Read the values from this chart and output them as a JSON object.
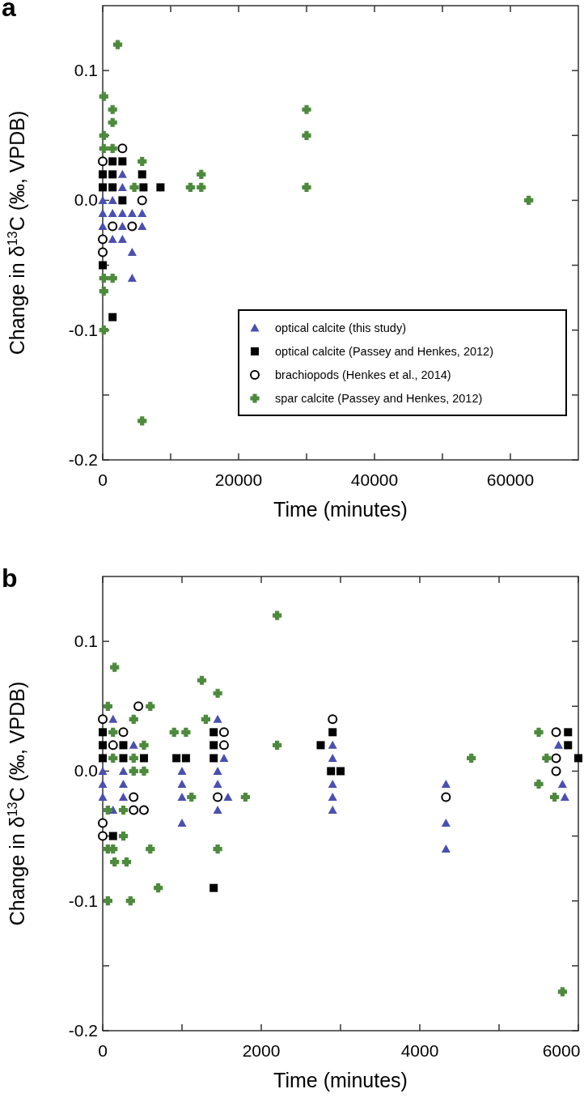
{
  "chart_data": [
    {
      "type": "scatter",
      "title": "a",
      "xlabel": "Time (minutes)",
      "ylabel": "Change in δ$^{13}$C (‰, VPDB)",
      "xlim": [
        0,
        70000
      ],
      "ylim": [
        -0.2,
        0.15
      ],
      "xticks": [
        0,
        {
          "value": 10000,
          "label": null
        },
        20000,
        {
          "value": 30000,
          "label": null
        },
        40000,
        {
          "value": 50000,
          "label": null
        },
        60000
      ],
      "yticks": [
        {
          "value": -0.2,
          "label": "-0.2"
        },
        {
          "value": -0.15,
          "label": null
        },
        {
          "value": -0.1,
          "label": "-0.1"
        },
        {
          "value": -0.05,
          "label": null
        },
        {
          "value": 0,
          "label": "0.0"
        },
        {
          "value": 0.05,
          "label": null
        },
        {
          "value": 0.1,
          "label": "0.1"
        }
      ],
      "legend": "bottom right",
      "grid": false,
      "series": [
        {
          "name": "optical calcite (this study)",
          "color": "#4a4fb0",
          "marker": "triangle",
          "x": [
            0,
            0,
            0,
            1450,
            1450,
            1450,
            2900,
            2900,
            2900,
            2900,
            2900,
            4330,
            4330,
            4330,
            5800,
            5800
          ],
          "values": [
            0.0,
            -0.01,
            -0.02,
            0.0,
            -0.01,
            -0.03,
            0.02,
            0.01,
            -0.01,
            -0.02,
            -0.03,
            -0.01,
            -0.04,
            -0.06,
            -0.01,
            -0.02
          ]
        },
        {
          "name": "optical calcite (Passey and Henkes, 2012)",
          "color": "#000000",
          "marker": "square",
          "x": [
            0,
            0,
            0,
            1450,
            1450,
            1450,
            1450,
            2900,
            2900,
            5800,
            6000,
            8500
          ],
          "values": [
            0.02,
            0.01,
            -0.05,
            0.03,
            0.02,
            0.01,
            -0.09,
            0.03,
            0.0,
            0.02,
            0.01,
            0.01
          ]
        },
        {
          "name": "brachiopods (Henkes et al., 2014)",
          "color": "#000000",
          "marker": "circle",
          "x": [
            0,
            0,
            0,
            1450,
            2900,
            4330,
            5800
          ],
          "values": [
            0.03,
            -0.03,
            -0.04,
            -0.02,
            0.04,
            -0.02,
            0.0
          ]
        },
        {
          "name": "spar calcite (Passey and Henkes, 2012)",
          "color": "#4d8a3d",
          "marker": "cross",
          "x": [
            150,
            150,
            150,
            150,
            150,
            150,
            1450,
            1450,
            1450,
            1450,
            2200,
            4650,
            5800,
            5800,
            12900,
            14500,
            14500,
            30000,
            30000,
            30000,
            62700
          ],
          "values": [
            0.08,
            0.05,
            0.04,
            -0.06,
            -0.07,
            -0.1,
            0.07,
            0.06,
            0.04,
            -0.06,
            0.12,
            0.01,
            0.03,
            -0.17,
            0.01,
            0.01,
            0.02,
            0.07,
            0.05,
            0.01,
            0.0
          ]
        }
      ]
    },
    {
      "type": "scatter",
      "title": "b",
      "xlabel": "Time (minutes)",
      "ylabel": "Change in δ$^{13}$C (‰, VPDB)",
      "xlim": [
        0,
        6000
      ],
      "ylim": [
        -0.2,
        0.15
      ],
      "xticks": [
        0,
        {
          "value": 1000,
          "label": null
        },
        2000,
        {
          "value": 3000,
          "label": null
        },
        4000,
        {
          "value": 5000,
          "label": null
        },
        6000
      ],
      "yticks": [
        {
          "value": -0.2,
          "label": "-0.2"
        },
        {
          "value": -0.15,
          "label": null
        },
        {
          "value": -0.1,
          "label": "-0.1"
        },
        {
          "value": -0.05,
          "label": null
        },
        {
          "value": 0,
          "label": "0.0"
        },
        {
          "value": 0.05,
          "label": null
        },
        {
          "value": 0.1,
          "label": "0.1"
        }
      ],
      "grid": false,
      "series": [
        {
          "color": "#4a4fb0",
          "marker": "triangle",
          "x": [
            0,
            260,
            0,
            260,
            0,
            260,
            130,
            130,
            390,
            1000,
            1000,
            1000,
            1000,
            1450,
            1530,
            1450,
            1450,
            1580,
            1450,
            2900,
            2900,
            2900,
            2900,
            2900,
            4330,
            4330,
            4330,
            5750,
            5800,
            5830
          ],
          "values": [
            0.0,
            0.0,
            -0.01,
            -0.01,
            -0.02,
            -0.02,
            -0.03,
            0.04,
            0.02,
            0.0,
            -0.01,
            -0.02,
            -0.04,
            0.04,
            0.01,
            0.0,
            -0.01,
            -0.02,
            -0.03,
            0.02,
            0.01,
            -0.01,
            -0.02,
            -0.03,
            -0.01,
            -0.04,
            -0.06,
            0.02,
            -0.01,
            -0.02
          ]
        },
        {
          "color": "#000000",
          "marker": "square",
          "x": [
            0,
            0,
            0,
            260,
            260,
            520,
            130,
            930,
            1050,
            1400,
            1400,
            1400,
            1400,
            2750,
            2900,
            2880,
            3000,
            5870,
            5870,
            6000
          ],
          "values": [
            0.03,
            0.02,
            0.01,
            0.02,
            0.01,
            0.01,
            -0.05,
            0.01,
            0.01,
            0.03,
            0.02,
            0.01,
            -0.09,
            0.02,
            0.03,
            0.0,
            0.0,
            0.03,
            0.02,
            0.01
          ]
        },
        {
          "color": "#000000",
          "marker": "circle",
          "x": [
            0,
            260,
            130,
            450,
            390,
            390,
            520,
            0,
            0,
            1450,
            1530,
            1530,
            2900,
            4330,
            5720,
            5720,
            5720
          ],
          "values": [
            0.04,
            0.03,
            0.02,
            0.05,
            -0.02,
            -0.03,
            -0.03,
            -0.04,
            -0.05,
            -0.02,
            0.02,
            0.03,
            0.04,
            -0.02,
            0.03,
            0.01,
            0.0
          ]
        },
        {
          "color": "#4d8a3d",
          "marker": "cross",
          "x": [
            150,
            65,
            600,
            390,
            130,
            520,
            130,
            390,
            390,
            520,
            65,
            260,
            260,
            65,
            130,
            600,
            150,
            300,
            700,
            65,
            350,
            900,
            1050,
            1120,
            1250,
            1300,
            1450,
            1450,
            1800,
            2200,
            2200,
            4650,
            5500,
            5500,
            5600,
            5700,
            5800
          ],
          "values": [
            0.08,
            0.05,
            0.05,
            0.04,
            0.03,
            0.02,
            0.01,
            0.01,
            0.0,
            0.0,
            -0.03,
            -0.03,
            -0.05,
            -0.06,
            -0.06,
            -0.06,
            -0.07,
            -0.07,
            -0.09,
            -0.1,
            -0.1,
            0.03,
            0.03,
            -0.02,
            0.07,
            0.04,
            0.06,
            -0.06,
            -0.02,
            0.12,
            0.02,
            0.01,
            0.03,
            -0.01,
            0.01,
            -0.02,
            -0.17
          ]
        }
      ]
    }
  ]
}
